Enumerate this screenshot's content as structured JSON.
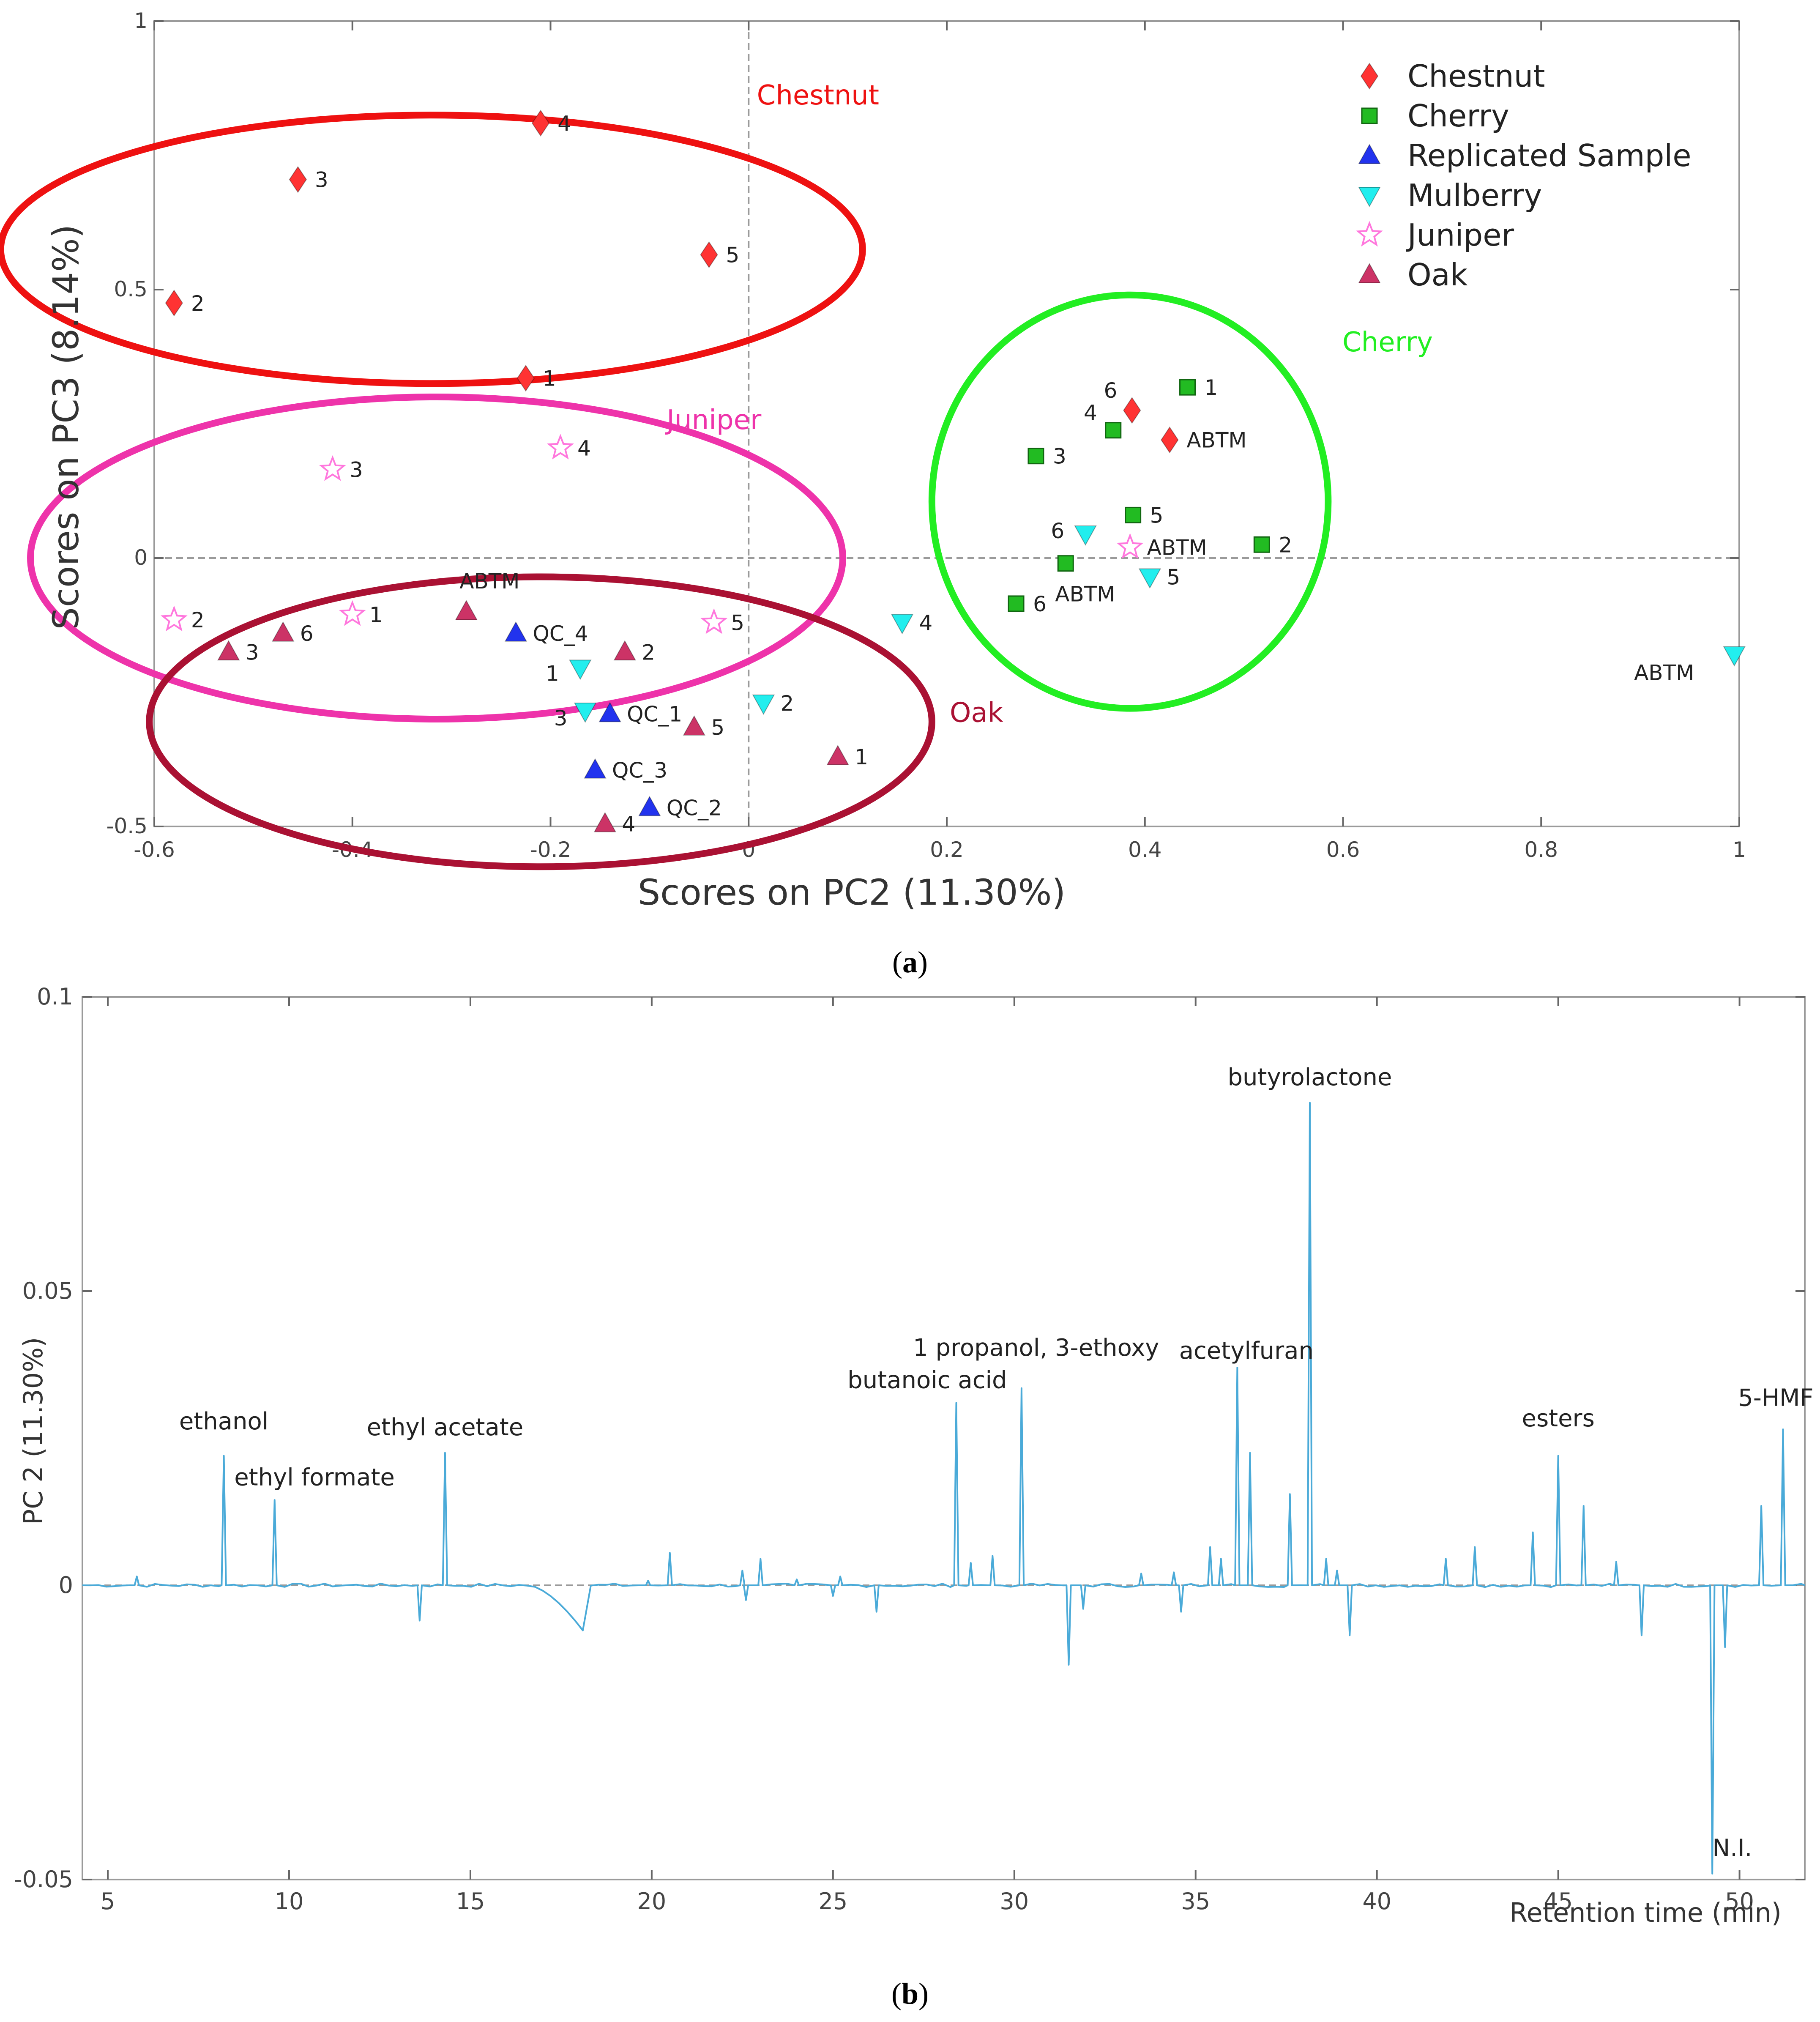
{
  "chart_data": [
    {
      "panel": "a",
      "panel_label": "a",
      "type": "scatter",
      "xlabel": "Scores on PC2 (11.30%)",
      "ylabel": "Scores on PC3 (8.14%)",
      "xlim": [
        -0.6,
        1
      ],
      "ylim": [
        -0.5,
        1
      ],
      "xticks": [
        -0.6,
        -0.4,
        -0.2,
        0,
        0.2,
        0.4,
        0.6,
        0.8,
        1
      ],
      "xtick_labels": [
        "-0.6",
        "-0.4",
        "-0.2",
        "0",
        "0.2",
        "0.4",
        "0.6",
        "0.8",
        "1"
      ],
      "yticks": [
        -0.5,
        0,
        0.5,
        1
      ],
      "ytick_labels": [
        "-0.5",
        "0",
        "0.5",
        "1"
      ],
      "legend_position": "top-right",
      "series": [
        {
          "name": "Chestnut",
          "marker": "diamond",
          "color": "#ff3333",
          "points": [
            {
              "x": -0.58,
              "y": 0.475,
              "label": "2"
            },
            {
              "x": -0.455,
              "y": 0.705,
              "label": "3"
            },
            {
              "x": -0.21,
              "y": 0.81,
              "label": "4"
            },
            {
              "x": -0.04,
              "y": 0.565,
              "label": "5"
            },
            {
              "x": -0.225,
              "y": 0.335,
              "label": "1"
            },
            {
              "x": 0.387,
              "y": 0.275,
              "label": "6"
            },
            {
              "x": 0.425,
              "y": 0.22,
              "label": "ABTM"
            }
          ]
        },
        {
          "name": "Cherry",
          "marker": "square",
          "color": "#22bb22",
          "points": [
            {
              "x": 0.443,
              "y": 0.318,
              "label": "1"
            },
            {
              "x": 0.368,
              "y": 0.238,
              "label": "4"
            },
            {
              "x": 0.29,
              "y": 0.19,
              "label": "3"
            },
            {
              "x": 0.388,
              "y": 0.08,
              "label": "5"
            },
            {
              "x": 0.518,
              "y": 0.025,
              "label": "2"
            },
            {
              "x": 0.32,
              "y": -0.01,
              "label": "ABTM"
            },
            {
              "x": 0.27,
              "y": -0.085,
              "label": "6"
            }
          ]
        },
        {
          "name": "Replicated Sample",
          "marker": "triangle-up",
          "color": "#2233ee",
          "points": [
            {
              "x": -0.235,
              "y": -0.14,
              "label": "QC_4"
            },
            {
              "x": -0.14,
              "y": -0.29,
              "label": "QC_1"
            },
            {
              "x": -0.155,
              "y": -0.395,
              "label": "QC_3"
            },
            {
              "x": -0.1,
              "y": -0.465,
              "label": "QC_2"
            }
          ]
        },
        {
          "name": "Mulberry",
          "marker": "triangle-down",
          "color": "#22eeee",
          "points": [
            {
              "x": 0.155,
              "y": -0.12,
              "label": "4"
            },
            {
              "x": -0.17,
              "y": -0.205,
              "label": "1"
            },
            {
              "x": -0.165,
              "y": -0.285,
              "label": "3"
            },
            {
              "x": 0.015,
              "y": -0.27,
              "label": "2"
            },
            {
              "x": 0.34,
              "y": 0.045,
              "label": "6"
            },
            {
              "x": 0.405,
              "y": -0.035,
              "label": "5"
            },
            {
              "x": 0.995,
              "y": -0.18,
              "label": "ABTM"
            }
          ]
        },
        {
          "name": "Juniper",
          "marker": "star",
          "color": "#ff77dd",
          "points": [
            {
              "x": -0.42,
              "y": 0.165,
              "label": "3"
            },
            {
              "x": -0.19,
              "y": 0.205,
              "label": "4"
            },
            {
              "x": -0.58,
              "y": -0.115,
              "label": "2"
            },
            {
              "x": -0.4,
              "y": -0.105,
              "label": "1"
            },
            {
              "x": -0.035,
              "y": -0.12,
              "label": "5"
            },
            {
              "x": 0.385,
              "y": 0.02,
              "label": "ABTM"
            }
          ]
        },
        {
          "name": "Oak",
          "marker": "triangle-up",
          "color": "#cc3366",
          "points": [
            {
              "x": -0.525,
              "y": -0.175,
              "label": "3"
            },
            {
              "x": -0.47,
              "y": -0.14,
              "label": "6"
            },
            {
              "x": -0.285,
              "y": -0.1,
              "label": "ABTM"
            },
            {
              "x": -0.125,
              "y": -0.175,
              "label": "2"
            },
            {
              "x": -0.055,
              "y": -0.315,
              "label": "5"
            },
            {
              "x": 0.09,
              "y": -0.37,
              "label": "1"
            },
            {
              "x": -0.145,
              "y": -0.495,
              "label": "4"
            }
          ]
        }
      ],
      "group_ellipses": [
        {
          "name": "Chestnut",
          "label": "Chestnut",
          "color": "#ee1111"
        },
        {
          "name": "Juniper",
          "label": "Juniper",
          "color": "#ee33aa"
        },
        {
          "name": "Oak",
          "label": "Oak",
          "color": "#aa1133"
        },
        {
          "name": "Cherry",
          "label": "Cherry",
          "color": "#22ee22"
        }
      ]
    },
    {
      "panel": "b",
      "panel_label": "b",
      "type": "line",
      "xlabel": "Retention time (min)",
      "ylabel": "PC 2 (11.30%)",
      "xlim": [
        4.3,
        51.8
      ],
      "ylim": [
        -0.05,
        0.1
      ],
      "xticks": [
        5,
        10,
        15,
        20,
        25,
        30,
        35,
        40,
        45,
        50
      ],
      "xtick_labels": [
        "5",
        "10",
        "15",
        "20",
        "25",
        "30",
        "35",
        "40",
        "45",
        "50"
      ],
      "yticks": [
        -0.05,
        0,
        0.05,
        0.1
      ],
      "ytick_labels": [
        "-0.05",
        "0",
        "0.05",
        "0.1"
      ],
      "line_color": "#4aaad8",
      "peaks": [
        {
          "x": 5.8,
          "y": 0.0015
        },
        {
          "x": 8.2,
          "y": 0.022
        },
        {
          "x": 9.6,
          "y": 0.0145
        },
        {
          "x": 13.6,
          "y": -0.006
        },
        {
          "x": 14.3,
          "y": 0.0225
        },
        {
          "x": 19.9,
          "y": 0.0008
        },
        {
          "x": 20.5,
          "y": 0.0055
        },
        {
          "x": 22.5,
          "y": 0.0025
        },
        {
          "x": 22.6,
          "y": -0.0025
        },
        {
          "x": 23.0,
          "y": 0.0045
        },
        {
          "x": 24.0,
          "y": 0.001
        },
        {
          "x": 25.0,
          "y": -0.0018
        },
        {
          "x": 25.2,
          "y": 0.0015
        },
        {
          "x": 26.2,
          "y": -0.0045
        },
        {
          "x": 28.4,
          "y": 0.031
        },
        {
          "x": 28.8,
          "y": 0.0038
        },
        {
          "x": 29.4,
          "y": 0.005
        },
        {
          "x": 30.2,
          "y": 0.0335
        },
        {
          "x": 31.5,
          "y": -0.0135
        },
        {
          "x": 31.9,
          "y": -0.004
        },
        {
          "x": 33.5,
          "y": 0.002
        },
        {
          "x": 34.4,
          "y": 0.0022
        },
        {
          "x": 34.6,
          "y": -0.0045
        },
        {
          "x": 35.4,
          "y": 0.0065
        },
        {
          "x": 35.7,
          "y": 0.0045
        },
        {
          "x": 36.15,
          "y": 0.037
        },
        {
          "x": 36.5,
          "y": 0.0225
        },
        {
          "x": 37.6,
          "y": 0.0155
        },
        {
          "x": 38.15,
          "y": 0.082
        },
        {
          "x": 38.6,
          "y": 0.0045
        },
        {
          "x": 38.9,
          "y": 0.0025
        },
        {
          "x": 39.25,
          "y": -0.0085
        },
        {
          "x": 41.9,
          "y": 0.0045
        },
        {
          "x": 42.7,
          "y": 0.0065
        },
        {
          "x": 44.3,
          "y": 0.009
        },
        {
          "x": 45.0,
          "y": 0.022
        },
        {
          "x": 45.7,
          "y": 0.0135
        },
        {
          "x": 46.6,
          "y": 0.004
        },
        {
          "x": 47.3,
          "y": -0.0085
        },
        {
          "x": 49.25,
          "y": -0.049
        },
        {
          "x": 49.6,
          "y": -0.0105
        },
        {
          "x": 50.6,
          "y": 0.0135
        },
        {
          "x": 51.2,
          "y": 0.0265
        }
      ],
      "annotations": [
        {
          "text": "ethanol",
          "x": 8.2,
          "y": 0.0265
        },
        {
          "text": "ethyl formate",
          "x": 10.7,
          "y": 0.017
        },
        {
          "text": "ethyl acetate",
          "x": 14.3,
          "y": 0.0255
        },
        {
          "text": "butanoic acid",
          "x": 27.6,
          "y": 0.0335
        },
        {
          "text": "1 propanol, 3-ethoxy",
          "x": 30.6,
          "y": 0.039
        },
        {
          "text": "acetylfuran",
          "x": 36.4,
          "y": 0.0385
        },
        {
          "text": "butyrolactone",
          "x": 38.15,
          "y": 0.085
        },
        {
          "text": "esters",
          "x": 45.0,
          "y": 0.027
        },
        {
          "text": "5-HMF",
          "x": 51.0,
          "y": 0.0305
        },
        {
          "text": "N.I.",
          "x": 49.8,
          "y": -0.046
        }
      ]
    }
  ]
}
